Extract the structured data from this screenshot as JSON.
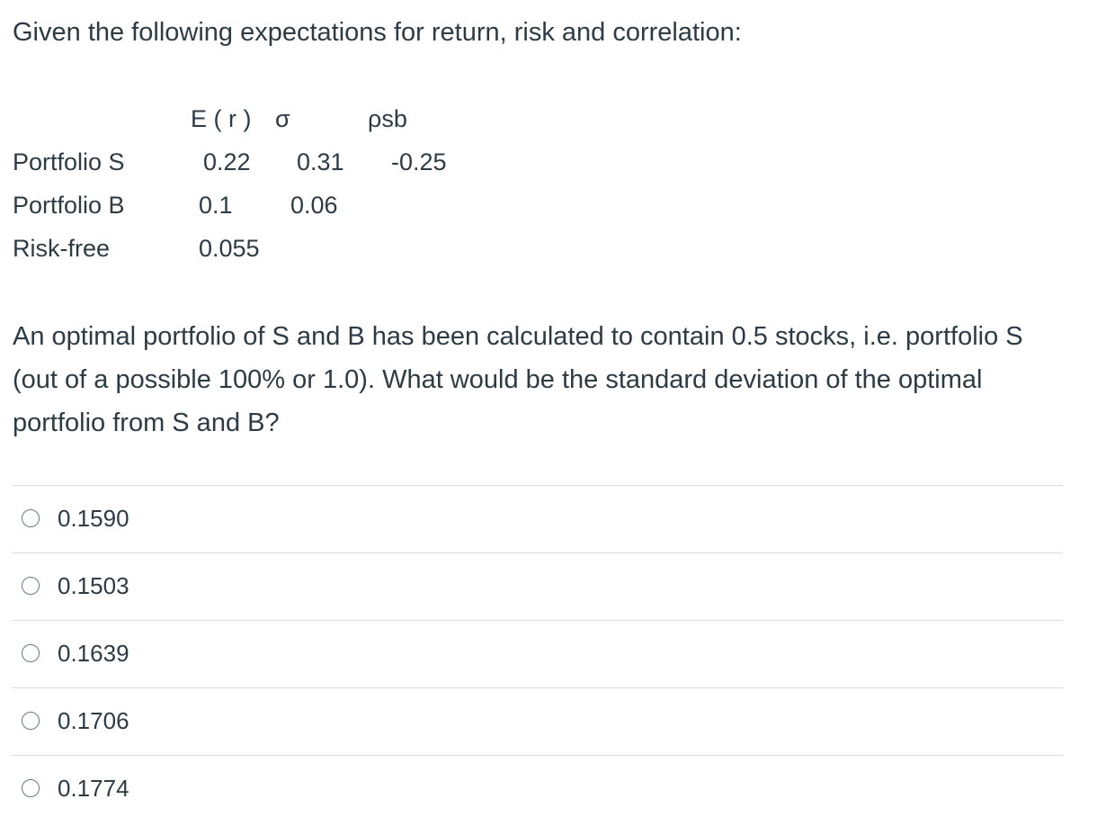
{
  "intro": "Given the following expectations for return, risk and correlation:",
  "table": {
    "headers": {
      "er": "E ( r )",
      "sigma": "σ",
      "rho": "ρsb"
    },
    "rows": [
      {
        "label": "Portfolio S",
        "er": "0.22",
        "sigma": "0.31",
        "rho": "-0.25"
      },
      {
        "label": "Portfolio B",
        "er": "0.1",
        "sigma": "0.06",
        "rho": ""
      },
      {
        "label": "Risk-free",
        "er": "0.055",
        "sigma": "",
        "rho": ""
      }
    ]
  },
  "question": "An optimal portfolio of S and B has been calculated to contain 0.5 stocks, i.e. portfolio S (out of a possible 100% or 1.0). What would be the standard deviation of the optimal portfolio from S and B?",
  "answers": [
    {
      "label": "0.1590"
    },
    {
      "label": "0.1503"
    },
    {
      "label": "0.1639"
    },
    {
      "label": "0.1706"
    },
    {
      "label": "0.1774"
    }
  ]
}
